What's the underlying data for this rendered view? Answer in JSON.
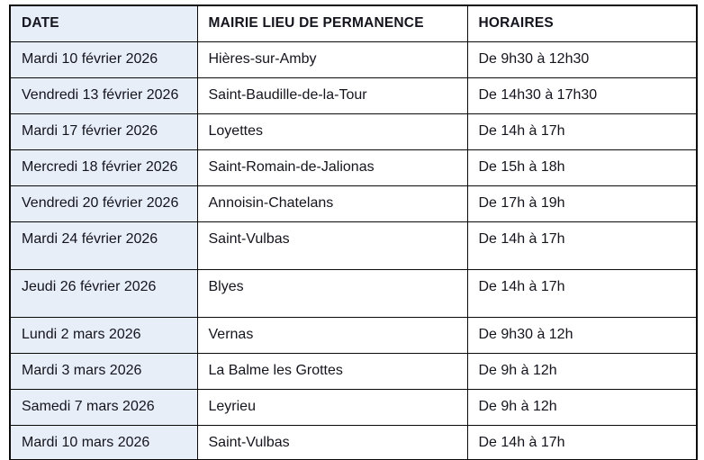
{
  "chart_data": {
    "type": "table",
    "title": "",
    "columns": [
      "DATE",
      "MAIRIE LIEU DE PERMANENCE",
      "HORAIRES"
    ],
    "rows": [
      [
        "Mardi 10 février 2026",
        "Hières-sur-Amby",
        "De 9h30 à 12h30"
      ],
      [
        "Vendredi 13 février 2026",
        "Saint-Baudille-de-la-Tour",
        "De 14h30 à 17h30"
      ],
      [
        "Mardi 17 février 2026",
        "Loyettes",
        "De 14h à 17h"
      ],
      [
        "Mercredi 18 février 2026",
        "Saint-Romain-de-Jalionas",
        "De 15h à 18h"
      ],
      [
        "Vendredi 20 février 2026",
        "Annoisin-Chatelans",
        "De 17h à 19h"
      ],
      [
        "Mardi 24 février 2026",
        "Saint-Vulbas",
        "De 14h à 17h"
      ],
      [
        "Jeudi 26 février 2026",
        "Blyes",
        "De 14h à 17h"
      ],
      [
        "Lundi 2 mars 2026",
        "Vernas",
        "De 9h30 à 12h"
      ],
      [
        "Mardi 3 mars 2026",
        "La Balme les Grottes",
        "De 9h à 12h"
      ],
      [
        "Samedi 7 mars 2026",
        "Leyrieu",
        "De 9h à 12h"
      ],
      [
        "Mardi 10 mars 2026",
        "Saint-Vulbas",
        "De 14h à 17h"
      ]
    ],
    "layout_hints": {
      "tall_row_indices": [
        5,
        6
      ],
      "header_bold": true,
      "date_column_shaded": true
    }
  },
  "colors": {
    "date_column_bg": "#e7eef7",
    "border": "#0a0a0a",
    "text": "#14141d",
    "page_bg": "#ffffff"
  }
}
